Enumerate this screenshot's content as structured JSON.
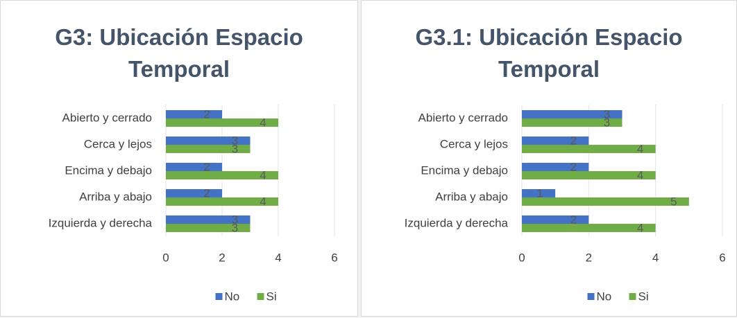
{
  "chart_data": [
    {
      "type": "bar",
      "orientation": "horizontal",
      "title": "G3: Ubicación Espacio Temporal",
      "categories": [
        "Abierto y cerrado",
        "Cerca y lejos",
        "Encima y debajo",
        "Arriba y abajo",
        "Izquierda y derecha"
      ],
      "series": [
        {
          "name": "No",
          "color": "#4472c4",
          "values": [
            2,
            3,
            2,
            2,
            3
          ]
        },
        {
          "name": "Si",
          "color": "#70ad47",
          "values": [
            4,
            3,
            4,
            4,
            3
          ]
        }
      ],
      "xlim": [
        0,
        6
      ],
      "xticks": [
        0,
        2,
        4,
        6
      ],
      "grid": true,
      "legend": "bottom"
    },
    {
      "type": "bar",
      "orientation": "horizontal",
      "title": "G3.1: Ubicación Espacio Temporal",
      "categories": [
        "Abierto y cerrado",
        "Cerca y lejos",
        "Encima y debajo",
        "Arriba y abajo",
        "Izquierda y derecha"
      ],
      "series": [
        {
          "name": "No",
          "color": "#4472c4",
          "values": [
            3,
            2,
            2,
            1,
            2
          ]
        },
        {
          "name": "Si",
          "color": "#70ad47",
          "values": [
            3,
            4,
            4,
            5,
            4
          ]
        }
      ],
      "xlim": [
        0,
        6
      ],
      "xticks": [
        0,
        2,
        4,
        6
      ],
      "grid": true,
      "legend": "bottom"
    }
  ]
}
